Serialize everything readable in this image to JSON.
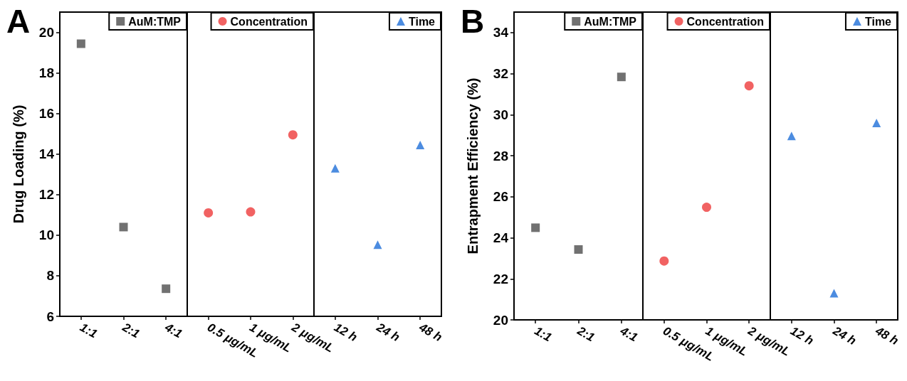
{
  "chart_data": [
    {
      "type": "scatter",
      "title": "A",
      "ylabel": "Drug Loading (%)",
      "categories": [
        "1:1",
        "2:1",
        "4:1"
      ],
      "series": [
        {
          "name": "AuM:TMP",
          "color": "#4d4d4d",
          "values": [
            19.44,
            10.4,
            7.36
          ]
        }
      ],
      "ylim": [
        6,
        21
      ],
      "yticks": [
        6,
        8,
        10,
        12,
        14,
        16,
        18,
        20
      ],
      "marker": "square",
      "legend": "top right"
    },
    {
      "type": "scatter",
      "categories": [
        "0.5 μg/mL",
        "1 μg/mL",
        "2 μg/mL"
      ],
      "series": [
        {
          "name": "Concentration",
          "color": "#ee3b3b",
          "values": [
            11.1,
            11.15,
            14.95
          ]
        }
      ],
      "ylim": [
        6,
        21
      ],
      "yticks": [
        6,
        8,
        10,
        12,
        14,
        16,
        18,
        20
      ],
      "tick_labels": "x",
      "marker": "circle",
      "legend": "top right"
    },
    {
      "type": "scatter",
      "categories": [
        "12 h",
        "24 h",
        "48 h"
      ],
      "series": [
        {
          "name": "Time",
          "color": "#1f6fd8",
          "values": [
            13.3,
            9.53,
            14.45
          ]
        }
      ],
      "ylim": [
        6,
        21
      ],
      "yticks": [
        6,
        8,
        10,
        12,
        14,
        16,
        18,
        20
      ],
      "tick_labels": "x",
      "marker": "triangle",
      "legend": "top right"
    },
    {
      "type": "scatter",
      "title": "B",
      "ylabel": "Entrapment Efficiency (%)",
      "categories": [
        "1:1",
        "2:1",
        "4:1"
      ],
      "series": [
        {
          "name": "AuM:TMP",
          "color": "#4d4d4d",
          "values": [
            24.49,
            23.43,
            31.84
          ]
        }
      ],
      "ylim": [
        20,
        35
      ],
      "yticks": [
        20,
        22,
        24,
        26,
        28,
        30,
        32,
        34
      ],
      "marker": "square",
      "legend": "top right"
    },
    {
      "type": "scatter",
      "categories": [
        "0.5 μg/mL",
        "1 μg/mL",
        "2 μg/mL"
      ],
      "series": [
        {
          "name": "Concentration",
          "color": "#ee3b3b",
          "values": [
            22.87,
            25.49,
            31.41
          ]
        }
      ],
      "ylim": [
        20,
        35
      ],
      "yticks": [
        20,
        22,
        24,
        26,
        28,
        30,
        32,
        34
      ],
      "tick_labels": "x",
      "marker": "circle",
      "legend": "top right"
    },
    {
      "type": "scatter",
      "categories": [
        "12 h",
        "24 h",
        "48 h"
      ],
      "series": [
        {
          "name": "Time",
          "color": "#1f6fd8",
          "values": [
            28.96,
            21.3,
            29.6
          ]
        }
      ],
      "ylim": [
        20,
        35
      ],
      "yticks": [
        20,
        22,
        24,
        26,
        28,
        30,
        32,
        34
      ],
      "tick_labels": "x",
      "marker": "triangle",
      "legend": "top right"
    }
  ]
}
